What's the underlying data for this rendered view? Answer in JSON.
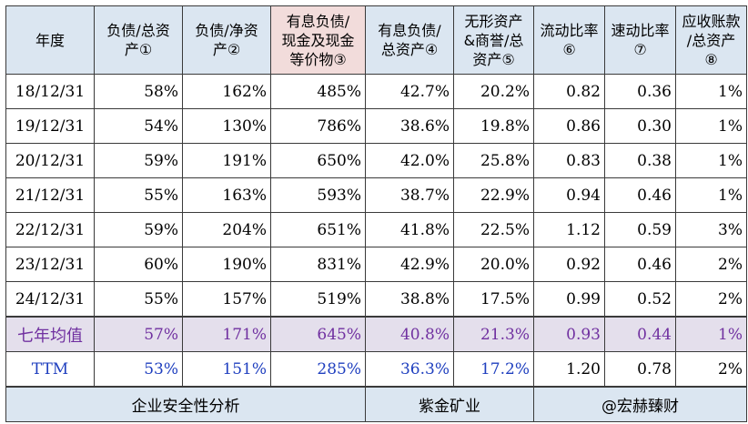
{
  "columns": [
    {
      "lines": [
        "年度"
      ],
      "highlight": false
    },
    {
      "lines": [
        "负债/总资",
        "产①"
      ],
      "highlight": false
    },
    {
      "lines": [
        "负债/净资",
        "产②"
      ],
      "highlight": false
    },
    {
      "lines": [
        "有息负债/",
        "现金及现金",
        "等价物③"
      ],
      "highlight": true
    },
    {
      "lines": [
        "有息负债/",
        "总资产④"
      ],
      "highlight": false
    },
    {
      "lines": [
        "无形资产",
        "&商誉/总",
        "资产⑤"
      ],
      "highlight": false
    },
    {
      "lines": [
        "流动比率",
        "⑥"
      ],
      "highlight": false
    },
    {
      "lines": [
        "速动比率",
        "⑦"
      ],
      "highlight": false
    },
    {
      "lines": [
        "应收账款",
        "/总资产",
        "⑧"
      ],
      "highlight": false
    }
  ],
  "rows": [
    [
      "18/12/31",
      "58%",
      "162%",
      "485%",
      "42.7%",
      "20.2%",
      "0.82",
      "0.36",
      "1%"
    ],
    [
      "19/12/31",
      "54%",
      "130%",
      "786%",
      "38.6%",
      "19.8%",
      "0.86",
      "0.30",
      "1%"
    ],
    [
      "20/12/31",
      "59%",
      "191%",
      "650%",
      "42.0%",
      "25.8%",
      "0.83",
      "0.38",
      "1%"
    ],
    [
      "21/12/31",
      "55%",
      "163%",
      "593%",
      "38.7%",
      "22.9%",
      "0.94",
      "0.46",
      "1%"
    ],
    [
      "22/12/31",
      "59%",
      "204%",
      "651%",
      "41.8%",
      "22.5%",
      "1.12",
      "0.59",
      "3%"
    ],
    [
      "23/12/31",
      "60%",
      "190%",
      "831%",
      "42.9%",
      "20.0%",
      "0.92",
      "0.46",
      "2%"
    ],
    [
      "24/12/31",
      "55%",
      "157%",
      "519%",
      "38.8%",
      "17.5%",
      "0.99",
      "0.52",
      "2%"
    ]
  ],
  "average_row": [
    "七年均值",
    "57%",
    "171%",
    "645%",
    "40.8%",
    "21.3%",
    "0.93",
    "0.44",
    "1%"
  ],
  "ttm_row": [
    "TTM",
    "53%",
    "151%",
    "285%",
    "36.3%",
    "17.2%",
    "1.20",
    "0.78",
    "2%"
  ],
  "footer": {
    "title": "企业安全性分析",
    "company": "紫金矿业",
    "author": "@宏赫臻财"
  },
  "colors": {
    "header_bg": "#dbe6f1",
    "header_highlight_bg": "#f2dcdb",
    "average_bg": "#e4dfec",
    "average_text": "#7030a0",
    "ttm_text": "#1f3fbf"
  }
}
